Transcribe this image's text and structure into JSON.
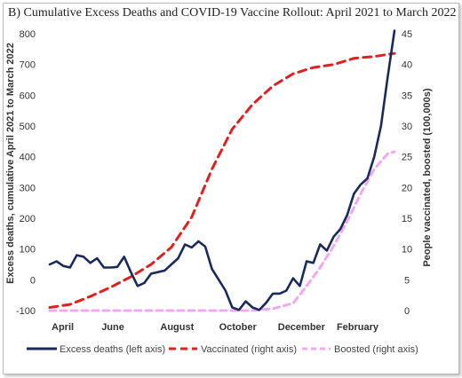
{
  "chart_data": {
    "type": "line",
    "title": "B)  Cumulative Excess Deaths and COVID-19 Vaccine Rollout: April 2021 to March 2022",
    "ylabel_left": "Excess deaths, cumulative April 2021 to March 2022",
    "ylabel_right": "People vaccinated, boosted (100,000s)",
    "xlabel": "",
    "x_tick_labels": [
      "April",
      "June",
      "August",
      "October",
      "December",
      "February"
    ],
    "y_left_ticks": [
      -100,
      0,
      100,
      200,
      300,
      400,
      500,
      600,
      700,
      800
    ],
    "y_right_ticks": [
      0,
      5,
      10,
      15,
      20,
      25,
      30,
      35,
      40,
      45
    ],
    "y_left_lim": [
      -100,
      800
    ],
    "y_right_lim": [
      0,
      45
    ],
    "x_unit": "week index (0 = first week of April 2021)",
    "x_lim": [
      0,
      51
    ],
    "grid": false,
    "legend_position": "bottom",
    "series": [
      {
        "name": "Excess deaths (left axis)",
        "axis": "left",
        "color": "#1b2a5c",
        "style": "solid",
        "x": [
          0,
          1,
          2,
          3,
          4,
          5,
          6,
          7,
          8,
          9,
          10,
          11,
          12,
          13,
          14,
          15,
          16,
          17,
          18,
          19,
          20,
          21,
          22,
          23,
          24,
          25,
          26,
          27,
          28,
          29,
          30,
          31,
          32,
          33,
          34,
          35,
          36,
          37,
          38,
          39,
          40,
          41,
          42,
          43,
          44,
          45,
          46,
          47,
          48,
          49,
          50
        ],
        "values": [
          50,
          60,
          45,
          40,
          80,
          75,
          55,
          70,
          40,
          40,
          42,
          75,
          25,
          -20,
          -10,
          20,
          25,
          30,
          50,
          70,
          115,
          105,
          125,
          108,
          35,
          0,
          -35,
          -90,
          -98,
          -70,
          -90,
          -98,
          -75,
          -45,
          -45,
          -35,
          5,
          -20,
          60,
          55,
          115,
          95,
          140,
          165,
          210,
          280,
          310,
          330,
          400,
          500,
          660
        ],
        "extra_point": {
          "x": 51,
          "value": 810
        }
      },
      {
        "name": "Vaccinated (right axis)",
        "axis": "right",
        "color": "#e02020",
        "style": "dashed",
        "x": [
          0,
          3,
          6,
          9,
          12,
          15,
          18,
          21,
          24,
          27,
          30,
          33,
          36,
          39,
          42,
          45,
          48,
          51
        ],
        "values": [
          0.5,
          1,
          2.3,
          3.8,
          5.5,
          7.5,
          10.3,
          15.2,
          23,
          29.5,
          33.5,
          36.5,
          38.5,
          39.5,
          40,
          41,
          41.3,
          41.8
        ]
      },
      {
        "name": "Boosted (right axis)",
        "axis": "right",
        "color": "#f0a8f0",
        "style": "dashed",
        "x": [
          0,
          6,
          12,
          18,
          24,
          30,
          33,
          36,
          38,
          40,
          42,
          44,
          46,
          48,
          50,
          51
        ],
        "values": [
          0,
          0,
          0,
          0,
          0,
          0,
          0.3,
          1.2,
          4,
          7,
          10.5,
          14.5,
          19,
          23,
          25.5,
          25.8
        ]
      }
    ]
  }
}
